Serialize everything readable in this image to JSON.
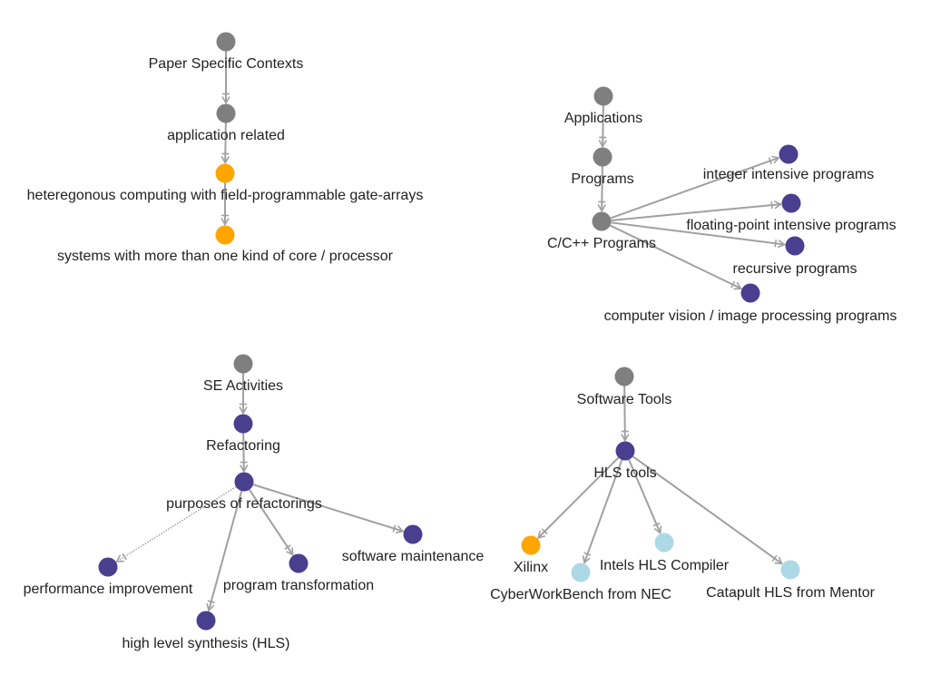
{
  "colors": {
    "gray": "#7f7f7f",
    "purple": "#4a3e8f",
    "orange": "#ffa500",
    "lightblue": "#add8e6",
    "edge": "#a0a0a0"
  },
  "clusters": [
    {
      "name": "paper-specific-contexts",
      "nodes": [
        {
          "id": "psc",
          "label": "Paper Specific Contexts",
          "color": "gray"
        },
        {
          "id": "app_rel",
          "label": "application related",
          "color": "gray"
        },
        {
          "id": "hetero_fpga",
          "label": "heteregonous computing with field-programmable gate-arrays",
          "color": "orange"
        },
        {
          "id": "multi_core",
          "label": "systems with more than one kind of core / processor",
          "color": "orange"
        }
      ],
      "edges": [
        {
          "from": "psc",
          "to": "app_rel"
        },
        {
          "from": "app_rel",
          "to": "hetero_fpga"
        },
        {
          "from": "hetero_fpga",
          "to": "multi_core"
        }
      ]
    },
    {
      "name": "applications",
      "nodes": [
        {
          "id": "applications",
          "label": "Applications",
          "color": "gray"
        },
        {
          "id": "programs",
          "label": "Programs",
          "color": "gray"
        },
        {
          "id": "cpp",
          "label": "C/C++ Programs",
          "color": "gray"
        },
        {
          "id": "int_prog",
          "label": "integer intensive programs",
          "color": "purple"
        },
        {
          "id": "fp_prog",
          "label": "floating-point intensive programs",
          "color": "purple"
        },
        {
          "id": "rec_prog",
          "label": "recursive programs",
          "color": "purple"
        },
        {
          "id": "cv_prog",
          "label": "computer vision / image processing programs",
          "color": "purple"
        }
      ],
      "edges": [
        {
          "from": "applications",
          "to": "programs"
        },
        {
          "from": "programs",
          "to": "cpp"
        },
        {
          "from": "cpp",
          "to": "int_prog"
        },
        {
          "from": "cpp",
          "to": "fp_prog"
        },
        {
          "from": "cpp",
          "to": "rec_prog"
        },
        {
          "from": "cpp",
          "to": "cv_prog"
        }
      ]
    },
    {
      "name": "se-activities",
      "nodes": [
        {
          "id": "se_act",
          "label": "SE Activities",
          "color": "gray"
        },
        {
          "id": "refactoring",
          "label": "Refactoring",
          "color": "purple"
        },
        {
          "id": "purposes",
          "label": "purposes of refactorings",
          "color": "purple"
        },
        {
          "id": "perf",
          "label": "performance improvement",
          "color": "purple"
        },
        {
          "id": "hls",
          "label": "high level synthesis (HLS)",
          "color": "purple"
        },
        {
          "id": "prog_trans",
          "label": "program transformation",
          "color": "purple"
        },
        {
          "id": "sw_maint",
          "label": "software maintenance",
          "color": "purple"
        }
      ],
      "edges": [
        {
          "from": "se_act",
          "to": "refactoring"
        },
        {
          "from": "refactoring",
          "to": "purposes"
        },
        {
          "from": "purposes",
          "to": "perf",
          "style": "dotted"
        },
        {
          "from": "purposes",
          "to": "hls"
        },
        {
          "from": "purposes",
          "to": "prog_trans"
        },
        {
          "from": "purposes",
          "to": "sw_maint"
        }
      ]
    },
    {
      "name": "software-tools",
      "nodes": [
        {
          "id": "sw_tools",
          "label": "Software Tools",
          "color": "gray"
        },
        {
          "id": "hls_tools",
          "label": "HLS tools",
          "color": "purple"
        },
        {
          "id": "xilinx",
          "label": "Xilinx",
          "color": "orange"
        },
        {
          "id": "cwb",
          "label": "CyberWorkBench from NEC",
          "color": "lightblue"
        },
        {
          "id": "intel",
          "label": "Intels HLS Compiler",
          "color": "lightblue"
        },
        {
          "id": "catapult",
          "label": "Catapult HLS from Mentor",
          "color": "lightblue"
        }
      ],
      "edges": [
        {
          "from": "sw_tools",
          "to": "hls_tools"
        },
        {
          "from": "hls_tools",
          "to": "xilinx"
        },
        {
          "from": "hls_tools",
          "to": "cwb"
        },
        {
          "from": "hls_tools",
          "to": "intel"
        },
        {
          "from": "hls_tools",
          "to": "catapult"
        }
      ]
    }
  ]
}
